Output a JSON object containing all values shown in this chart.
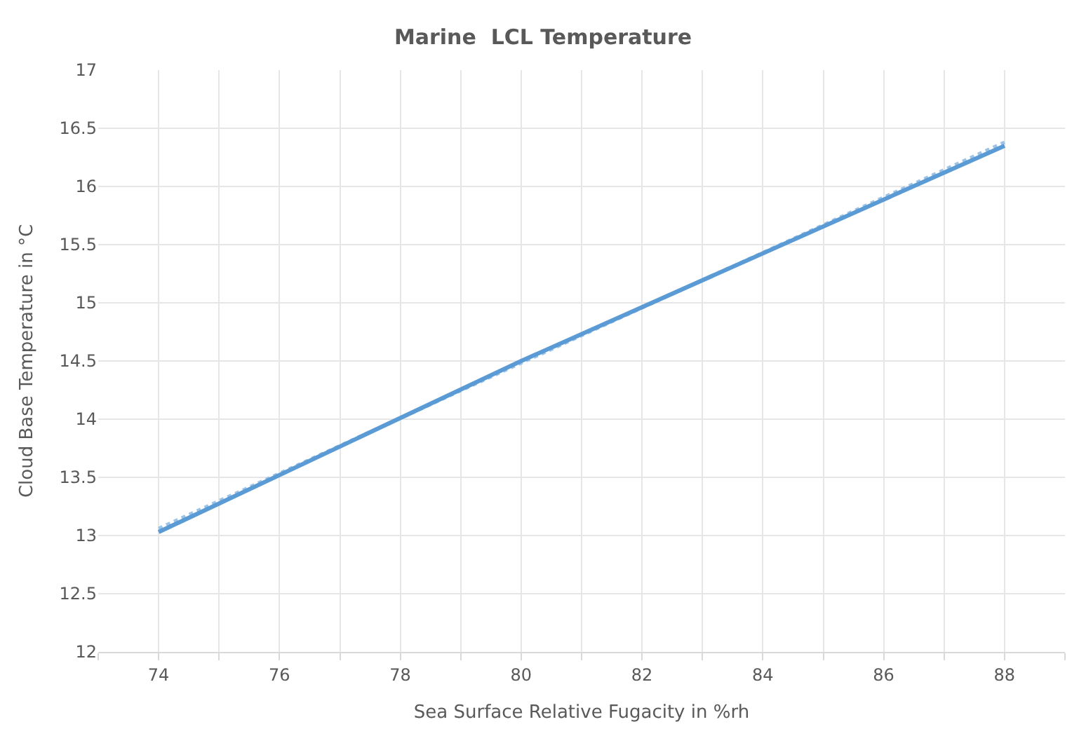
{
  "chart_data": {
    "type": "line",
    "title": "Marine  LCL Temperature",
    "xlabel": "Sea Surface Relative Fugacity in %rh",
    "ylabel": "Cloud Base Temperature in °C",
    "xlim": [
      73,
      89
    ],
    "xticks": [
      {
        "value": 73,
        "label": null
      },
      74,
      {
        "value": 75,
        "label": null
      },
      76,
      {
        "value": 77,
        "label": null
      },
      78,
      {
        "value": 79,
        "label": null
      },
      80,
      {
        "value": 81,
        "label": null
      },
      82,
      {
        "value": 83,
        "label": null
      },
      84,
      {
        "value": 85,
        "label": null
      },
      86,
      {
        "value": 87,
        "label": null
      },
      88,
      {
        "value": 89,
        "label": null
      }
    ],
    "ylim": [
      12,
      17
    ],
    "yticks": [
      12,
      12.5,
      13,
      13.5,
      14,
      14.5,
      15,
      15.5,
      16,
      16.5,
      17
    ],
    "grid": true,
    "marker": "none",
    "series": [
      {
        "color": "#5b9bd5",
        "x": [
          74,
          80,
          88
        ],
        "values": [
          13.03,
          14.5,
          16.35
        ]
      },
      {
        "color": "#9dc3e6",
        "x": [
          74,
          88
        ],
        "values": [
          13.06,
          16.38
        ],
        "line_style": "dotted"
      }
    ]
  }
}
